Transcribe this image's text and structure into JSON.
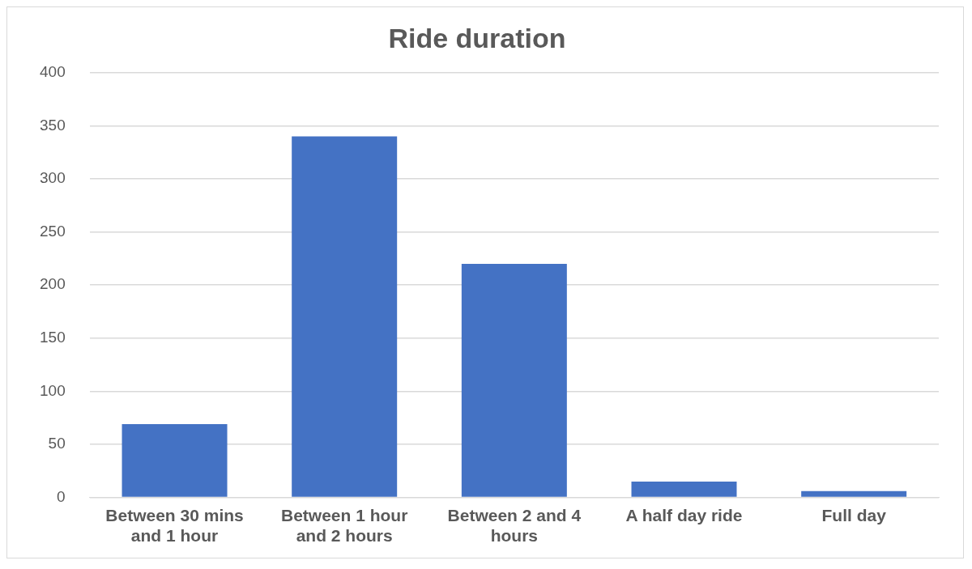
{
  "chart_data": {
    "type": "bar",
    "title": "Ride duration",
    "categories": [
      "Between 30 mins and 1 hour",
      "Between 1 hour and 2 hours",
      "Between 2 and 4 hours",
      "A half day ride",
      "Full day"
    ],
    "values": [
      69,
      340,
      220,
      15,
      6
    ],
    "color": "#4472c4",
    "ylim": [
      0,
      400
    ],
    "yticks": [
      0,
      50,
      100,
      150,
      200,
      250,
      300,
      350,
      400
    ],
    "grid": "y",
    "legend": false
  }
}
